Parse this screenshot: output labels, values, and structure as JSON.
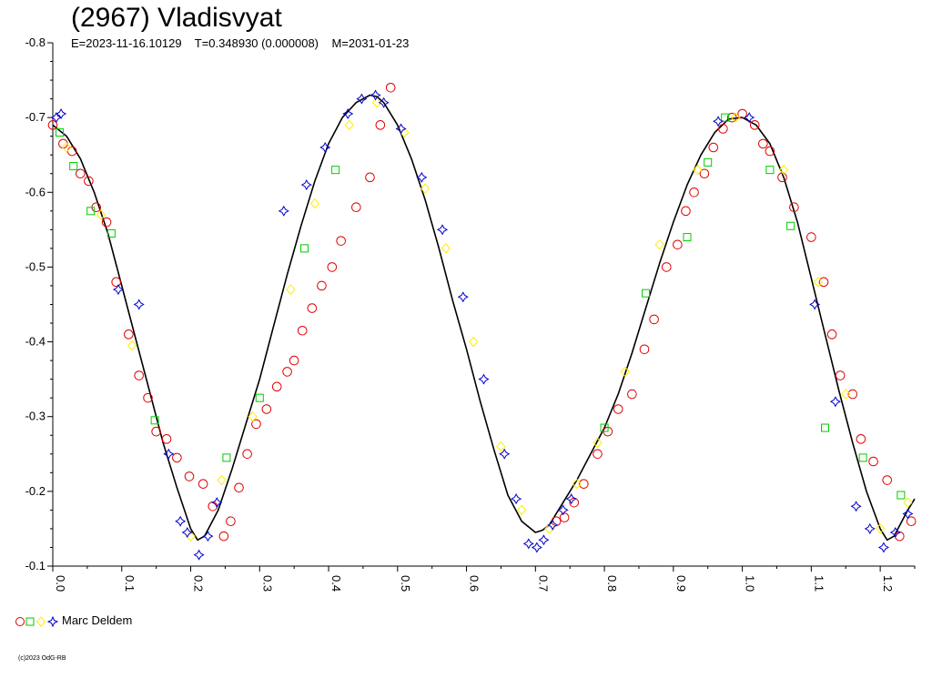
{
  "chart_data": {
    "type": "scatter",
    "title": "(2967) Vladisvyat",
    "subtitle": "E=2023-11-16.10129    T=0.348930 (0.000008)    M=2031-01-23",
    "xlabel": "",
    "ylabel": "",
    "xlim": [
      0.0,
      1.25
    ],
    "ylim": [
      -0.8,
      -0.1
    ],
    "y_inverted": true,
    "y_ticks": [
      "-0.8",
      "-0.7",
      "-0.6",
      "-0.5",
      "-0.4",
      "-0.3",
      "-0.2",
      "-0.1"
    ],
    "x_ticks": [
      "0.0",
      "0.1",
      "0.2",
      "0.3",
      "0.4",
      "0.5",
      "0.6",
      "0.7",
      "0.8",
      "0.9",
      "1.0",
      "1.1",
      "1.2"
    ],
    "grid": false,
    "legend_placement": "bottom-left",
    "legend": [
      {
        "name": "Marc Deldem",
        "markers": [
          "circle",
          "square",
          "diamond",
          "star"
        ]
      }
    ],
    "fit_curve": {
      "name": "",
      "x": [
        0.0,
        0.02,
        0.04,
        0.06,
        0.08,
        0.1,
        0.12,
        0.14,
        0.16,
        0.18,
        0.2,
        0.21,
        0.22,
        0.24,
        0.26,
        0.28,
        0.3,
        0.32,
        0.34,
        0.36,
        0.38,
        0.4,
        0.42,
        0.44,
        0.46,
        0.47,
        0.48,
        0.5,
        0.52,
        0.54,
        0.56,
        0.58,
        0.6,
        0.62,
        0.64,
        0.66,
        0.68,
        0.7,
        0.71,
        0.72,
        0.74,
        0.76,
        0.78,
        0.8,
        0.82,
        0.84,
        0.86,
        0.88,
        0.9,
        0.92,
        0.94,
        0.96,
        0.98,
        1.0,
        1.02,
        1.04,
        1.06,
        1.08,
        1.1,
        1.12,
        1.14,
        1.16,
        1.18,
        1.2,
        1.21,
        1.22,
        1.24,
        1.25
      ],
      "y": [
        -0.69,
        -0.675,
        -0.645,
        -0.6,
        -0.545,
        -0.475,
        -0.405,
        -0.335,
        -0.265,
        -0.205,
        -0.15,
        -0.135,
        -0.14,
        -0.175,
        -0.23,
        -0.29,
        -0.35,
        -0.42,
        -0.49,
        -0.555,
        -0.615,
        -0.665,
        -0.7,
        -0.72,
        -0.73,
        -0.728,
        -0.72,
        -0.69,
        -0.645,
        -0.59,
        -0.525,
        -0.455,
        -0.39,
        -0.32,
        -0.255,
        -0.195,
        -0.16,
        -0.145,
        -0.148,
        -0.155,
        -0.185,
        -0.215,
        -0.25,
        -0.285,
        -0.33,
        -0.385,
        -0.445,
        -0.505,
        -0.56,
        -0.61,
        -0.65,
        -0.68,
        -0.698,
        -0.7,
        -0.69,
        -0.665,
        -0.62,
        -0.56,
        -0.485,
        -0.41,
        -0.335,
        -0.265,
        -0.2,
        -0.15,
        -0.135,
        -0.14,
        -0.175,
        -0.19
      ]
    },
    "series": [
      {
        "marker": "circle",
        "color": "#e00000",
        "x": [
          0.0,
          0.015,
          0.028,
          0.04,
          0.052,
          0.063,
          0.078,
          0.092,
          0.11,
          0.125,
          0.138,
          0.15,
          0.165,
          0.18,
          0.198,
          0.218,
          0.232,
          0.248,
          0.258,
          0.27,
          0.282,
          0.295,
          0.31,
          0.325,
          0.34,
          0.35,
          0.362,
          0.376,
          0.39,
          0.405,
          0.418,
          0.44,
          0.46,
          0.475,
          0.49,
          0.73,
          0.742,
          0.756,
          0.77,
          0.79,
          0.805,
          0.82,
          0.84,
          0.858,
          0.872,
          0.89,
          0.906,
          0.918,
          0.93,
          0.945,
          0.958,
          0.972,
          0.985,
          1.0,
          1.018,
          1.03,
          1.04,
          1.058,
          1.075,
          1.1,
          1.118,
          1.13,
          1.142,
          1.16,
          1.172,
          1.19,
          1.21,
          1.228,
          1.245
        ],
        "y": [
          -0.69,
          -0.665,
          -0.655,
          -0.625,
          -0.615,
          -0.58,
          -0.56,
          -0.48,
          -0.41,
          -0.355,
          -0.325,
          -0.28,
          -0.27,
          -0.245,
          -0.22,
          -0.21,
          -0.18,
          -0.14,
          -0.16,
          -0.205,
          -0.25,
          -0.29,
          -0.31,
          -0.34,
          -0.36,
          -0.375,
          -0.415,
          -0.445,
          -0.475,
          -0.5,
          -0.535,
          -0.58,
          -0.62,
          -0.69,
          -0.74,
          -0.16,
          -0.165,
          -0.185,
          -0.21,
          -0.25,
          -0.28,
          -0.31,
          -0.33,
          -0.39,
          -0.43,
          -0.5,
          -0.53,
          -0.575,
          -0.6,
          -0.625,
          -0.66,
          -0.685,
          -0.7,
          -0.705,
          -0.69,
          -0.665,
          -0.655,
          -0.62,
          -0.58,
          -0.54,
          -0.48,
          -0.41,
          -0.355,
          -0.33,
          -0.27,
          -0.24,
          -0.215,
          -0.14,
          -0.16
        ]
      },
      {
        "marker": "square",
        "color": "#00cc00",
        "x": [
          0.01,
          0.03,
          0.055,
          0.085,
          0.148,
          0.252,
          0.3,
          0.365,
          0.41,
          0.8,
          0.86,
          0.92,
          0.95,
          0.975,
          1.04,
          1.07,
          1.12,
          1.175,
          1.23
        ],
        "y": [
          -0.68,
          -0.635,
          -0.575,
          -0.545,
          -0.295,
          -0.245,
          -0.325,
          -0.525,
          -0.63,
          -0.285,
          -0.465,
          -0.54,
          -0.64,
          -0.7,
          -0.63,
          -0.555,
          -0.285,
          -0.245,
          -0.195
        ]
      },
      {
        "marker": "diamond",
        "color": "#ffee00",
        "x": [
          0.02,
          0.07,
          0.115,
          0.2,
          0.245,
          0.29,
          0.345,
          0.38,
          0.43,
          0.47,
          0.51,
          0.54,
          0.57,
          0.61,
          0.65,
          0.68,
          0.72,
          0.76,
          0.79,
          0.83,
          0.88,
          0.935,
          0.99,
          1.06,
          1.11,
          1.15,
          1.2,
          1.24
        ],
        "y": [
          -0.66,
          -0.57,
          -0.395,
          -0.14,
          -0.215,
          -0.3,
          -0.47,
          -0.585,
          -0.69,
          -0.72,
          -0.68,
          -0.605,
          -0.525,
          -0.4,
          -0.26,
          -0.175,
          -0.15,
          -0.21,
          -0.265,
          -0.36,
          -0.53,
          -0.63,
          -0.7,
          -0.63,
          -0.48,
          -0.33,
          -0.15,
          -0.185
        ]
      },
      {
        "marker": "star",
        "color": "#0000cc",
        "x": [
          0.005,
          0.012,
          0.095,
          0.125,
          0.168,
          0.185,
          0.195,
          0.212,
          0.225,
          0.238,
          0.335,
          0.368,
          0.395,
          0.428,
          0.448,
          0.468,
          0.48,
          0.505,
          0.535,
          0.565,
          0.595,
          0.625,
          0.655,
          0.672,
          0.69,
          0.702,
          0.712,
          0.725,
          0.74,
          0.752,
          0.965,
          1.01,
          1.105,
          1.135,
          1.165,
          1.185,
          1.205,
          1.222,
          1.24
        ],
        "y": [
          -0.7,
          -0.705,
          -0.47,
          -0.45,
          -0.25,
          -0.16,
          -0.145,
          -0.115,
          -0.14,
          -0.185,
          -0.575,
          -0.61,
          -0.66,
          -0.705,
          -0.725,
          -0.73,
          -0.72,
          -0.685,
          -0.62,
          -0.55,
          -0.46,
          -0.35,
          -0.25,
          -0.19,
          -0.13,
          -0.125,
          -0.135,
          -0.155,
          -0.175,
          -0.19,
          -0.695,
          -0.7,
          -0.45,
          -0.32,
          -0.18,
          -0.15,
          -0.125,
          -0.145,
          -0.17
        ]
      }
    ]
  },
  "legend_label": "Marc Deldem",
  "copyright": "(c)2023 OdG-RB"
}
